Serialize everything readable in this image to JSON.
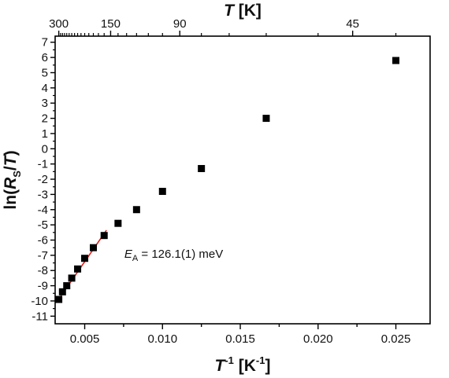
{
  "chart_data": {
    "type": "scatter",
    "x_axis": {
      "label_main": "T",
      "label_sup": "-1",
      "label_unit_pre": " [K",
      "label_unit_sup": "-1",
      "label_unit_post": "]",
      "range": [
        0.0031,
        0.0272
      ],
      "ticks": [
        0.005,
        0.01,
        0.015,
        0.02,
        0.025
      ],
      "tick_labels": [
        "0.005",
        "0.010",
        "0.015",
        "0.020",
        "0.025"
      ],
      "minor_step": 0.0025
    },
    "top_axis": {
      "label_main": "T",
      "label_unit": " [K]",
      "ticks_T": [
        300,
        150,
        90,
        45
      ],
      "tick_labels": [
        "300",
        "150",
        "90",
        "45"
      ],
      "minor_T": [
        290,
        280,
        270,
        260,
        250,
        240,
        230,
        220,
        210,
        200,
        190,
        180,
        170,
        160,
        140,
        130,
        120,
        110,
        100,
        80,
        70,
        60,
        50,
        40
      ]
    },
    "y_axis": {
      "label_pre": "ln(",
      "label_var": "R",
      "label_sub": "S",
      "label_post_slash": "/",
      "label_var2": "T",
      "label_close": ")",
      "range": [
        -11.5,
        7.4
      ],
      "ticks": [
        -11,
        -10,
        -9,
        -8,
        -7,
        -6,
        -5,
        -4,
        -3,
        -2,
        -1,
        0,
        1,
        2,
        3,
        4,
        5,
        6,
        7
      ],
      "tick_labels": [
        "-11",
        "-10",
        "-9",
        "-8",
        "-7",
        "-6",
        "-5",
        "-4",
        "-3",
        "-2",
        "-1",
        "0",
        "1",
        "2",
        "3",
        "4",
        "5",
        "6",
        "7"
      ]
    },
    "series": [
      {
        "marker": "square",
        "color": "#000000",
        "x": [
          0.003333,
          0.003571,
          0.003846,
          0.004167,
          0.004545,
          0.005,
          0.005556,
          0.00625,
          0.007143,
          0.008333,
          0.01,
          0.0125,
          0.016667,
          0.025
        ],
        "y": [
          -9.9,
          -9.4,
          -9.0,
          -8.5,
          -7.9,
          -7.2,
          -6.5,
          -5.7,
          -4.9,
          -4.0,
          -2.8,
          -1.3,
          2.0,
          5.8
        ]
      }
    ],
    "fit": {
      "color": "#e8201b",
      "x": [
        0.00325,
        0.0064
      ],
      "y": [
        -10.0,
        -5.35
      ]
    },
    "annotation": {
      "sym": "E",
      "sub": "A",
      "text": " = 126.1(1) meV",
      "x": 0.00755,
      "y": -7.15
    },
    "grid": false
  }
}
